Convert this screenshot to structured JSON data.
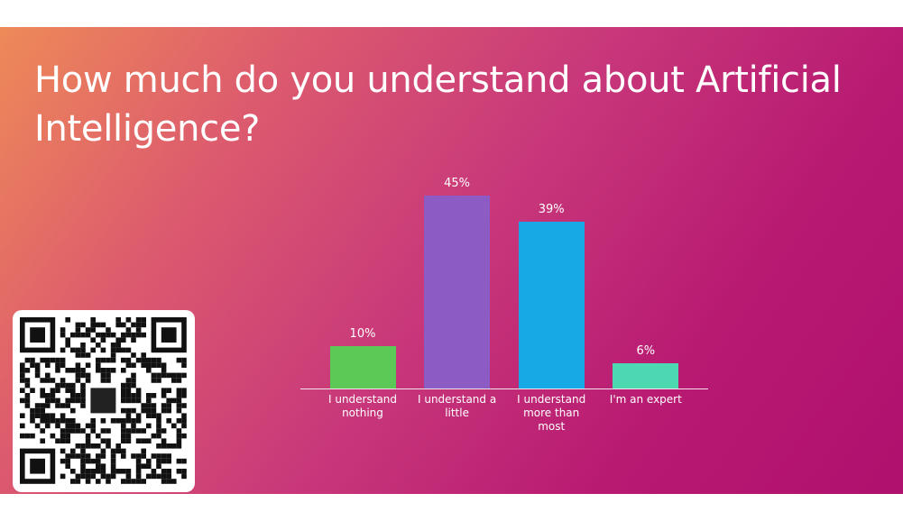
{
  "chart_data": {
    "type": "bar",
    "title": "How much do you understand about Artificial Intelligence?",
    "categories": [
      "I understand nothing",
      "I understand a little",
      "I understand more than most",
      "I'm an expert"
    ],
    "values": [
      10,
      45,
      39,
      6
    ],
    "value_labels": [
      "10%",
      "45%",
      "39%",
      "6%"
    ],
    "colors": [
      "#5cc855",
      "#8c5bc4",
      "#16a9e6",
      "#4ed8b2"
    ]
  }
}
